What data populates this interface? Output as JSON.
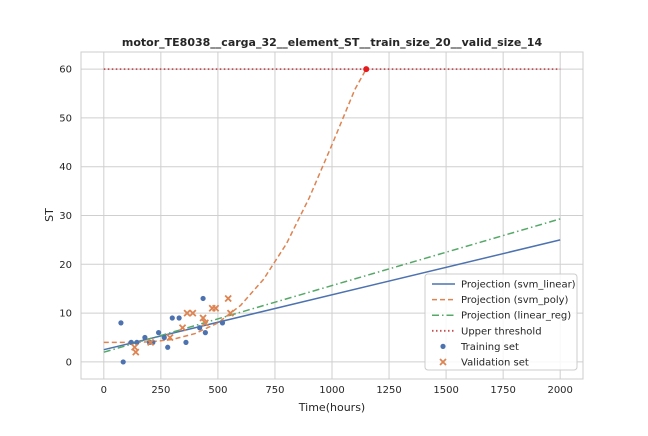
{
  "chart_data": {
    "type": "scatter",
    "title": "motor_TE8038__carga_32__element_ST__train_size_20__valid_size_14",
    "xlabel": "Time(hours)",
    "ylabel": "ST",
    "xlim": [
      -100,
      2100
    ],
    "ylim": [
      -3.5,
      63.5
    ],
    "xticks": [
      0,
      250,
      500,
      750,
      1000,
      1250,
      1500,
      1750,
      2000
    ],
    "yticks": [
      0,
      10,
      20,
      30,
      40,
      50,
      60
    ],
    "grid": true,
    "legend_position": "bottom-right",
    "colors": {
      "blue": "#4c72b0",
      "orange": "#dd8452",
      "green": "#55a868",
      "red": "#c44e52",
      "failure_point": "#e41a1c",
      "grid": "#cfcfcf",
      "spine": "#cccccc"
    },
    "series": [
      {
        "name": "Projection (svm_linear)",
        "kind": "line",
        "style": "solid",
        "color": "#4c72b0",
        "x": [
          0,
          2000
        ],
        "y": [
          2.5,
          25.0
        ]
      },
      {
        "name": "Projection (svm_poly)",
        "kind": "line",
        "style": "dashed",
        "color": "#dd8452",
        "x": [
          0,
          100,
          200,
          300,
          400,
          500,
          600,
          700,
          800,
          900,
          1000,
          1100,
          1150
        ],
        "y": [
          4.0,
          4.0,
          4.1,
          4.6,
          5.8,
          8.0,
          11.6,
          16.9,
          24.2,
          33.6,
          44.5,
          55.8,
          60.0
        ]
      },
      {
        "name": "Projection (linear_reg)",
        "kind": "line",
        "style": "dashdot",
        "color": "#55a868",
        "x": [
          0,
          2000
        ],
        "y": [
          2.0,
          29.3
        ]
      },
      {
        "name": "Upper threshold",
        "kind": "line",
        "style": "dotted",
        "color": "#c44e52",
        "x": [
          0,
          2000
        ],
        "y": [
          60,
          60
        ]
      },
      {
        "name": "Training set",
        "kind": "scatter",
        "marker": "circle",
        "color": "#4c72b0",
        "x": [
          75,
          85,
          120,
          145,
          180,
          200,
          215,
          240,
          265,
          280,
          300,
          330,
          360,
          420,
          435,
          445,
          520
        ],
        "y": [
          8,
          0,
          4,
          4,
          5,
          4,
          4,
          6,
          5,
          3,
          9,
          9,
          4,
          7,
          13,
          6,
          8
        ]
      },
      {
        "name": "Validation set",
        "kind": "scatter",
        "marker": "x",
        "color": "#dd8452",
        "x": [
          135,
          140,
          205,
          290,
          345,
          365,
          390,
          435,
          445,
          475,
          490,
          545,
          555
        ],
        "y": [
          3,
          2,
          4,
          5,
          7,
          10,
          10,
          9,
          8,
          11,
          11,
          13,
          10
        ]
      }
    ],
    "failure_point": {
      "x": 1150,
      "y": 60
    }
  }
}
